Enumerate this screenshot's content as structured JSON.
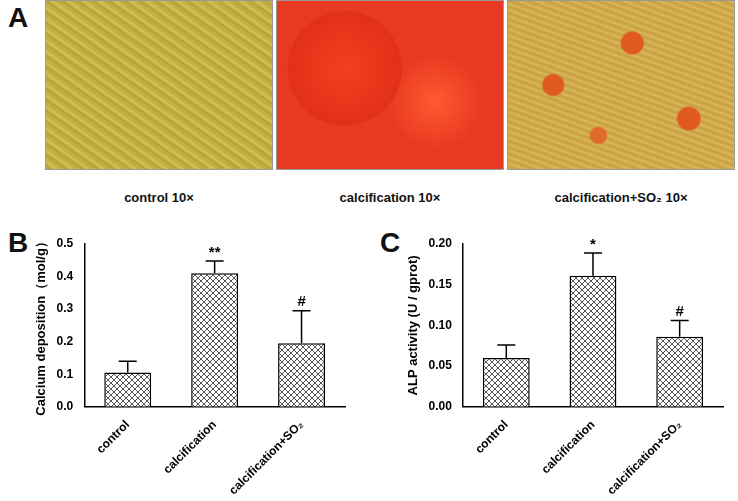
{
  "panel_labels": [
    "A",
    "B",
    "C"
  ],
  "images": [
    {
      "caption": "control 10×"
    },
    {
      "caption": "calcification 10×"
    },
    {
      "caption": "calcification+SO₂ 10×"
    }
  ],
  "chart_data": [
    {
      "type": "bar",
      "categories": [
        "control",
        "calcification",
        "calcification+SO₂"
      ],
      "values": [
        0.105,
        0.41,
        0.195
      ],
      "errors": [
        0.035,
        0.038,
        0.1
      ],
      "annotations": [
        null,
        "**",
        "#"
      ],
      "color": "#555555",
      "ylabel": "Calcium deposition（mol/g）",
      "ylim": [
        0,
        0.5
      ],
      "yticks": [
        {
          "value": 0,
          "label": "0.0"
        },
        0.1,
        0.2,
        0.3,
        0.4,
        0.5
      ],
      "grid": false
    },
    {
      "type": "bar",
      "categories": [
        "control",
        "calcification",
        "calcification+SO₂"
      ],
      "values": [
        0.06,
        0.161,
        0.086
      ],
      "errors": [
        0.016,
        0.028,
        0.02
      ],
      "annotations": [
        null,
        "*",
        "#"
      ],
      "color": "#555555",
      "ylabel": "ALP activity (U / gprot)",
      "ylim": [
        0,
        0.2
      ],
      "yticks": [
        {
          "value": 0,
          "label": "0.00"
        },
        {
          "value": 0.05,
          "label": "0.05"
        },
        {
          "value": 0.1,
          "label": "0.10"
        },
        {
          "value": 0.15,
          "label": "0.15"
        },
        {
          "value": 0.2,
          "label": "0.20"
        }
      ],
      "grid": false
    }
  ]
}
